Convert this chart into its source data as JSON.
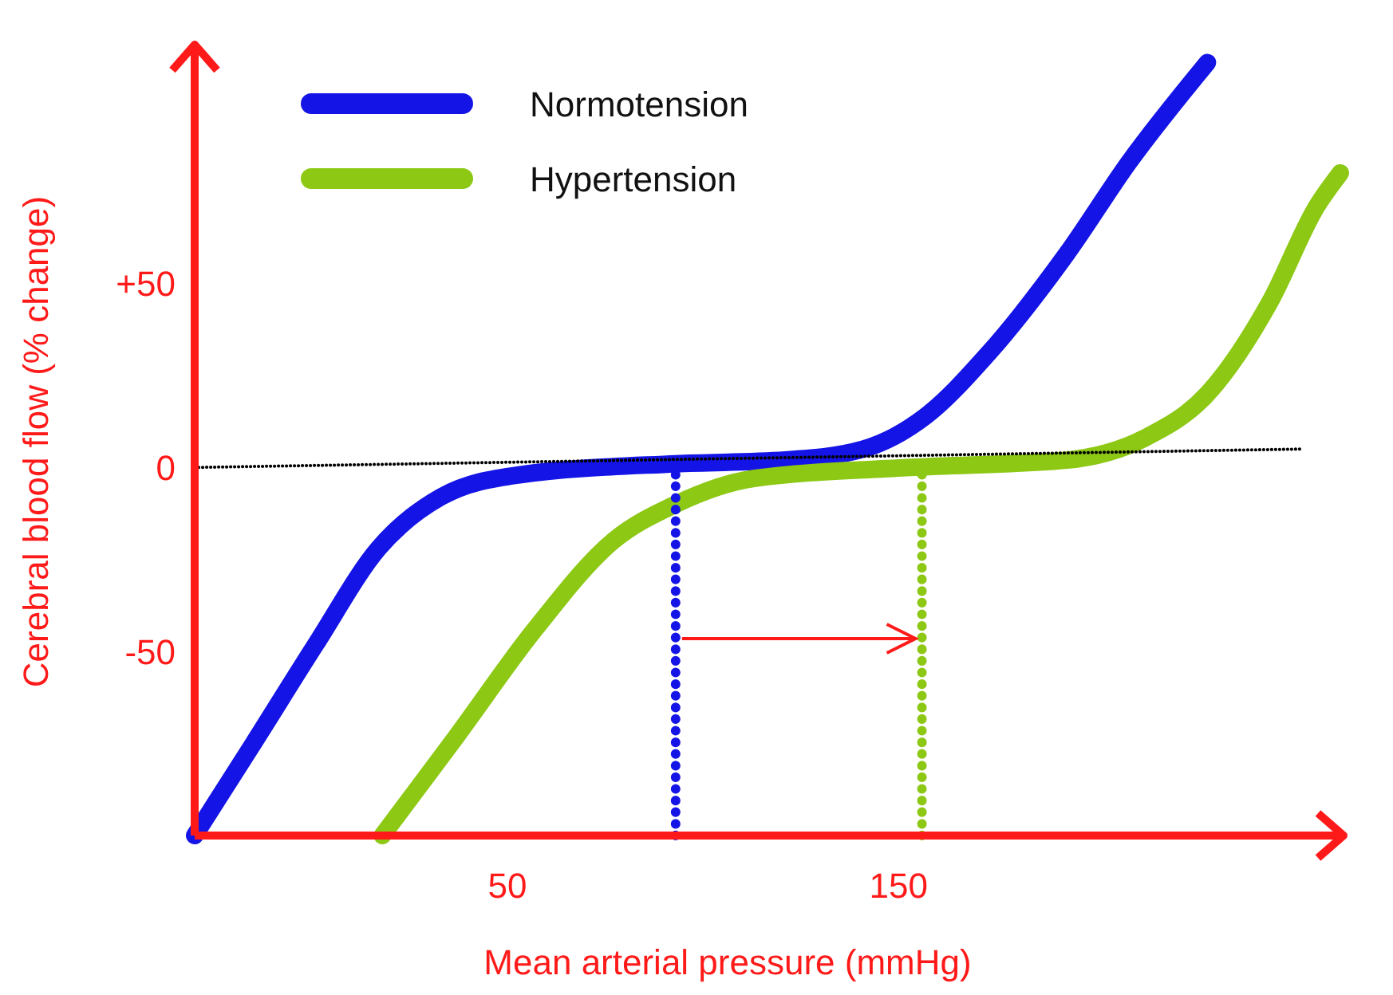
{
  "chart_data": {
    "type": "line",
    "xlabel": "Mean arterial pressure (mmHg)",
    "ylabel": "Cerebral blood flow (% change)",
    "xlim": [
      -30,
      263
    ],
    "ylim": [
      -100,
      114
    ],
    "xticks": [
      50,
      150
    ],
    "yticks": [
      {
        "value": 50,
        "label": "+50"
      },
      0,
      -50
    ],
    "legend": "top left",
    "series": [
      {
        "name": "Normotension",
        "color": "#1414e6",
        "x": [
          -30,
          -15,
          1,
          17,
          33,
          53,
          93,
          121,
          141,
          157,
          173,
          193,
          209,
          229
        ],
        "values": [
          -100,
          -75,
          -48,
          -22,
          -8,
          -2,
          1,
          2,
          5,
          14,
          31,
          58,
          83,
          110
        ]
      },
      {
        "name": "Hypertension",
        "color": "#8cc814",
        "x": [
          18,
          37,
          57,
          77,
          93,
          113,
          153,
          193,
          213,
          229,
          245,
          257,
          263
        ],
        "values": [
          -100,
          -73,
          -44,
          -20,
          -10,
          -3,
          0,
          2,
          8,
          20,
          45,
          71,
          80
        ]
      },
      {
        "color": "#000000",
        "x": [
          -30,
          253
        ],
        "values": [
          0,
          5
        ],
        "line_style": "dotted"
      },
      {
        "color": "#1414e6",
        "x": [
          93,
          93
        ],
        "values": [
          -100,
          1
        ],
        "line_style": "dotted"
      },
      {
        "color": "#8cc814",
        "x": [
          156,
          156
        ],
        "values": [
          -100,
          1
        ],
        "line_style": "dotted"
      }
    ]
  }
}
